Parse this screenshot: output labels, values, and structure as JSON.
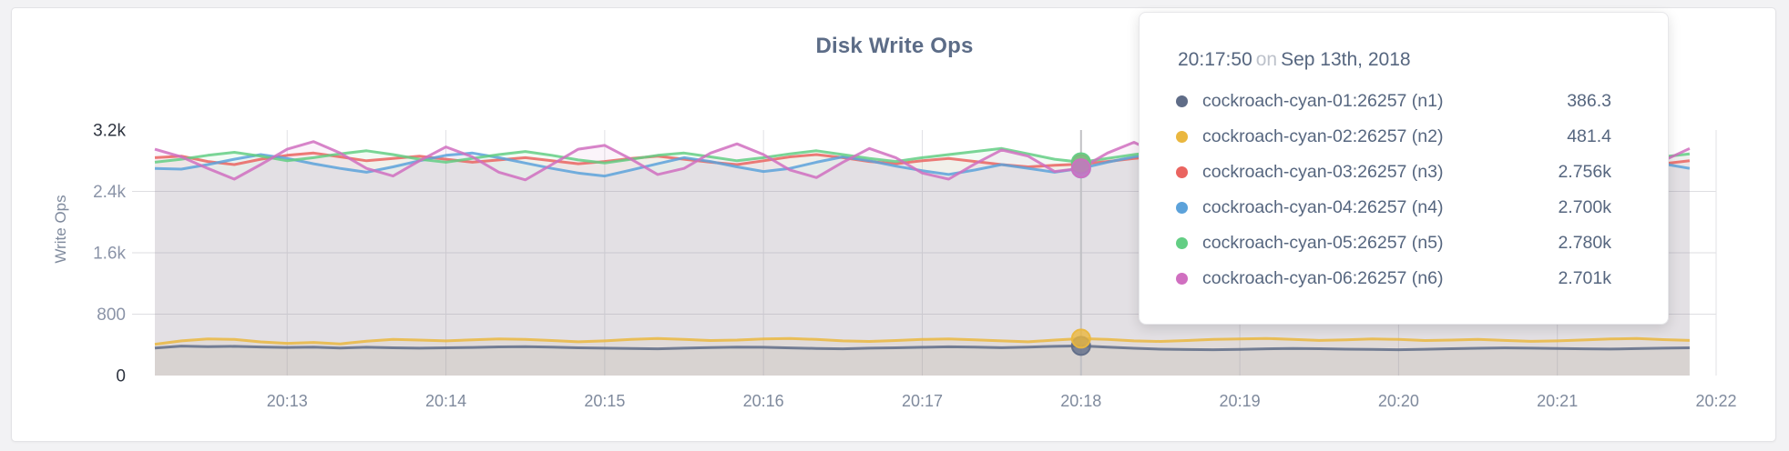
{
  "page": {
    "title": "Disk Write Ops"
  },
  "colors": {
    "title": "#5c6c87",
    "grid": "#dedee2",
    "grid_v": "#e1e1e5",
    "guideline": "#c0c0c4",
    "axis_tick": "#8b94a8",
    "axis_minmax": "#2e3440",
    "axis_x": "#7f8a9d",
    "tooltip_text": "#56667f",
    "tooltip_on": "#bdc2cb"
  },
  "tooltip": {
    "time": "20:17:50",
    "on_word": "on",
    "date": "Sep 13th, 2018",
    "rows": [
      {
        "label": "cockroach-cyan-01:26257 (n1)",
        "value": "386.3",
        "color": "#5F6C87"
      },
      {
        "label": "cockroach-cyan-02:26257 (n2)",
        "value": "481.4",
        "color": "#EAB73F"
      },
      {
        "label": "cockroach-cyan-03:26257 (n3)",
        "value": "2.756k",
        "color": "#EA6460"
      },
      {
        "label": "cockroach-cyan-04:26257 (n4)",
        "value": "2.700k",
        "color": "#5CA2DA"
      },
      {
        "label": "cockroach-cyan-05:26257 (n5)",
        "value": "2.780k",
        "color": "#63CE84"
      },
      {
        "label": "cockroach-cyan-06:26257 (n6)",
        "value": "2.701k",
        "color": "#D06FC0"
      }
    ]
  },
  "chart_data": {
    "type": "line",
    "title": "Disk Write Ops",
    "xlabel": "",
    "ylabel": "Write Ops",
    "ylim": [
      0,
      3200
    ],
    "grid": true,
    "legend_position": "tooltip",
    "x_start_time": "20:12:10",
    "x_end_time": "20:22:00",
    "x_step_seconds": 10,
    "x_ticks": [
      {
        "label": "20:13",
        "t": 50
      },
      {
        "label": "20:14",
        "t": 110
      },
      {
        "label": "20:15",
        "t": 170
      },
      {
        "label": "20:16",
        "t": 230
      },
      {
        "label": "20:17",
        "t": 290
      },
      {
        "label": "20:18",
        "t": 350
      },
      {
        "label": "20:19",
        "t": 410
      },
      {
        "label": "20:20",
        "t": 470
      },
      {
        "label": "20:21",
        "t": 530
      },
      {
        "label": "20:22",
        "t": 590
      }
    ],
    "y_ticks": [
      {
        "label": "0",
        "value": 0,
        "grid": false,
        "emphasis": true
      },
      {
        "label": "800",
        "value": 800,
        "grid": true,
        "emphasis": false
      },
      {
        "label": "1.6k",
        "value": 1600,
        "grid": true,
        "emphasis": false
      },
      {
        "label": "2.4k",
        "value": 2400,
        "grid": true,
        "emphasis": false
      },
      {
        "label": "3.2k",
        "value": 3200,
        "grid": false,
        "emphasis": true
      }
    ],
    "hover": {
      "index": 35,
      "time": "20:17:50",
      "date": "Sep 13th, 2018"
    },
    "series": [
      {
        "id": "n1",
        "name": "cockroach-cyan-01:26257 (n1)",
        "color": "#5F6C87",
        "hover_value": 386.3,
        "values": [
          358,
          384,
          376,
          380,
          372,
          366,
          371,
          359,
          368,
          362,
          357,
          361,
          366,
          373,
          377,
          370,
          362,
          357,
          353,
          349,
          357,
          364,
          371,
          368,
          360,
          353,
          349,
          357,
          362,
          368,
          374,
          370,
          363,
          371,
          380,
          386.3,
          371,
          355,
          344,
          339,
          336,
          341,
          348,
          353,
          350,
          344,
          340,
          337,
          343,
          350,
          356,
          360,
          357,
          352,
          348,
          345,
          351,
          357,
          362
        ]
      },
      {
        "id": "n2",
        "name": "cockroach-cyan-02:26257 (n2)",
        "color": "#EAB73F",
        "hover_value": 481.4,
        "values": [
          408,
          452,
          476,
          470,
          438,
          420,
          432,
          412,
          448,
          470,
          462,
          452,
          466,
          478,
          470,
          456,
          440,
          452,
          470,
          482,
          470,
          456,
          462,
          476,
          482,
          470,
          452,
          444,
          456,
          470,
          478,
          466,
          452,
          440,
          462,
          481.4,
          470,
          452,
          444,
          456,
          470,
          478,
          484,
          472,
          458,
          466,
          478,
          470,
          456,
          462,
          470,
          458,
          446,
          452,
          464,
          476,
          482,
          468,
          458
        ]
      },
      {
        "id": "n3",
        "name": "cockroach-cyan-03:26257 (n3)",
        "color": "#EA6460",
        "hover_value": 2756,
        "values": [
          2840,
          2860,
          2790,
          2750,
          2820,
          2870,
          2900,
          2850,
          2800,
          2830,
          2860,
          2820,
          2780,
          2810,
          2840,
          2800,
          2760,
          2790,
          2830,
          2860,
          2820,
          2780,
          2750,
          2800,
          2850,
          2880,
          2840,
          2790,
          2760,
          2800,
          2830,
          2790,
          2750,
          2720,
          2740,
          2756,
          2790,
          2830,
          2860,
          2820,
          2780,
          2750,
          2790,
          2820,
          2850,
          2810,
          2770,
          2740,
          2780,
          2820,
          2790,
          2760,
          2800,
          2840,
          2870,
          2830,
          2790,
          2760,
          2800
        ]
      },
      {
        "id": "n4",
        "name": "cockroach-cyan-04:26257 (n4)",
        "color": "#5CA2DA",
        "hover_value": 2700,
        "values": [
          2700,
          2690,
          2750,
          2820,
          2880,
          2830,
          2760,
          2700,
          2650,
          2720,
          2800,
          2870,
          2900,
          2840,
          2770,
          2700,
          2640,
          2600,
          2680,
          2760,
          2840,
          2790,
          2720,
          2660,
          2700,
          2780,
          2850,
          2800,
          2730,
          2670,
          2620,
          2680,
          2750,
          2700,
          2650,
          2700,
          2780,
          2850,
          2900,
          2840,
          2760,
          2690,
          2640,
          2700,
          2770,
          2840,
          2790,
          2720,
          2660,
          2710,
          2780,
          2850,
          2800,
          2740,
          2680,
          2640,
          2700,
          2760,
          2700
        ]
      },
      {
        "id": "n5",
        "name": "cockroach-cyan-05:26257 (n5)",
        "color": "#63CE84",
        "hover_value": 2780,
        "values": [
          2780,
          2820,
          2870,
          2910,
          2860,
          2800,
          2840,
          2890,
          2930,
          2880,
          2820,
          2780,
          2830,
          2880,
          2920,
          2870,
          2810,
          2770,
          2820,
          2870,
          2900,
          2850,
          2800,
          2840,
          2890,
          2930,
          2880,
          2830,
          2790,
          2840,
          2880,
          2920,
          2960,
          2890,
          2820,
          2780,
          2830,
          2880,
          2920,
          2870,
          2810,
          2850,
          2900,
          2940,
          2880,
          2820,
          2780,
          2830,
          2870,
          2910,
          2860,
          2800,
          2840,
          2890,
          2920,
          2870,
          2810,
          2850,
          2890
        ]
      },
      {
        "id": "n6",
        "name": "cockroach-cyan-06:26257 (n6)",
        "color": "#D06FC0",
        "hover_value": 2701,
        "values": [
          2950,
          2850,
          2700,
          2560,
          2750,
          2950,
          3050,
          2900,
          2700,
          2600,
          2800,
          2980,
          2850,
          2650,
          2550,
          2750,
          2950,
          3000,
          2820,
          2620,
          2700,
          2900,
          3020,
          2880,
          2680,
          2580,
          2780,
          2960,
          2840,
          2640,
          2560,
          2760,
          2940,
          2860,
          2660,
          2701,
          2900,
          3040,
          2880,
          2680,
          2580,
          2780,
          2960,
          3000,
          2820,
          2620,
          2720,
          2900,
          3010,
          2850,
          2650,
          2570,
          2770,
          2950,
          2870,
          2670,
          2600,
          2800,
          2960
        ]
      }
    ]
  }
}
